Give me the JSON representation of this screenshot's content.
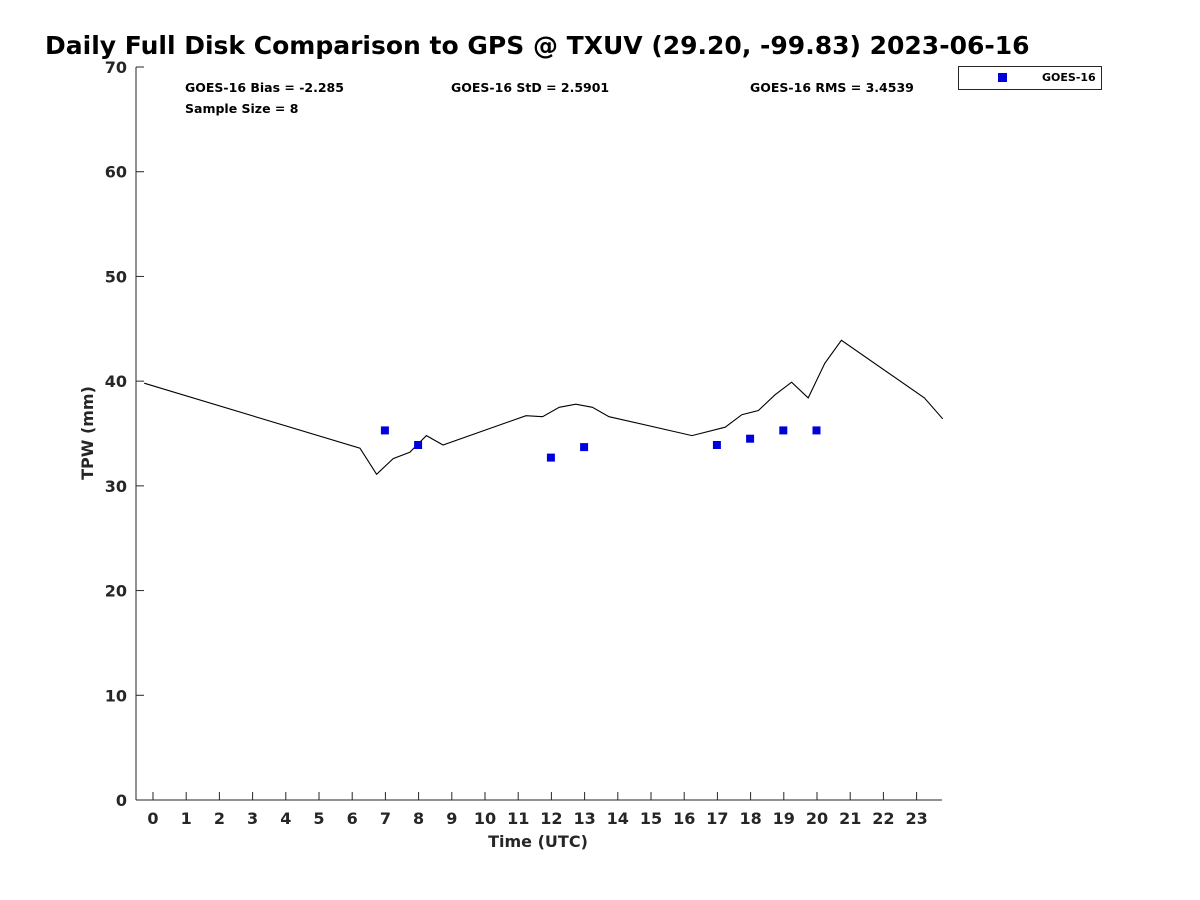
{
  "chart_data": {
    "type": "scatter",
    "title": "Daily Full Disk Comparison to GPS @ TXUV (29.20, -99.83) 2023-06-16",
    "xlabel": "Time (UTC)",
    "ylabel": "TPW (mm)",
    "xlim": [
      -0.5,
      23.8
    ],
    "ylim": [
      0,
      70
    ],
    "x_ticks": [
      0,
      1,
      2,
      3,
      4,
      5,
      6,
      7,
      8,
      9,
      10,
      11,
      12,
      13,
      14,
      15,
      16,
      17,
      18,
      19,
      20,
      21,
      22,
      23
    ],
    "y_ticks": [
      0,
      10,
      20,
      30,
      40,
      50,
      60,
      70
    ],
    "grid": false,
    "legend_position": "top-right outside",
    "stats": {
      "bias": "GOES-16 Bias = -2.285",
      "std": "GOES-16 StD = 2.5901",
      "rms": "GOES-16 RMS = 3.4539",
      "sample": "Sample Size = 8"
    },
    "series": [
      {
        "name": "GOES-16",
        "kind": "scatter",
        "marker": "square",
        "color": "#0000dd",
        "x": [
          7,
          8,
          12,
          13,
          17,
          18,
          19,
          20
        ],
        "y": [
          35.3,
          33.9,
          32.7,
          33.7,
          33.9,
          34.5,
          35.3,
          35.3
        ]
      },
      {
        "kind": "line",
        "color": "#000000",
        "x": [
          -0.25,
          6.25,
          6.75,
          7.25,
          7.75,
          8.25,
          8.75,
          11.25,
          11.75,
          12.25,
          12.75,
          13.25,
          13.75,
          16.25,
          17.25,
          17.75,
          18.25,
          18.75,
          19.25,
          19.75,
          20.25,
          20.75,
          23.25,
          23.8
        ],
        "y": [
          39.8,
          33.6,
          31.1,
          32.6,
          33.2,
          34.8,
          33.9,
          36.7,
          36.6,
          37.5,
          37.8,
          37.5,
          36.6,
          34.8,
          35.6,
          36.8,
          37.2,
          38.7,
          39.9,
          38.4,
          41.7,
          43.9,
          38.4,
          36.4
        ]
      }
    ]
  }
}
